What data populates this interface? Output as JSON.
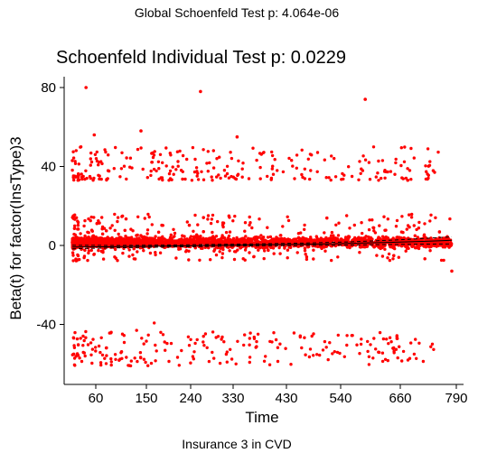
{
  "chart_data": {
    "type": "scatter",
    "caption_top": "Global Schoenfeld Test p: 4.064e-06",
    "title": "Schoenfeld Individual Test p: 0.0229",
    "caption_bottom": "Insurance 3 in CVD",
    "xlabel": "Time",
    "ylabel": "Beta(t) for factor(InsType)3",
    "x_ticks": [
      "60",
      "150",
      "240",
      "330",
      "430",
      "540",
      "660",
      "790"
    ],
    "y_ticks": [
      "80",
      "40",
      "0",
      "-40"
    ],
    "ylim": [
      -63,
      84
    ],
    "grid": false,
    "series": [
      {
        "color": "#ff0000",
        "marker": "point",
        "clusters": [
          {
            "band": "center",
            "y_range": [
              -8,
              16
            ],
            "x_range": [
              0,
              829
            ],
            "approx_points": 3000
          },
          {
            "band": "upper",
            "y_range": [
              33,
              50
            ],
            "x_range": [
              0,
              800
            ],
            "approx_points": 260
          },
          {
            "band": "lower",
            "y_range": [
              -61,
              -30
            ],
            "x_range": [
              0,
              800
            ],
            "approx_points": 230
          }
        ],
        "outliers": [
          {
            "x": 30,
            "y": 80
          },
          {
            "x": 280,
            "y": 78
          },
          {
            "x": 640,
            "y": 74
          },
          {
            "x": 48,
            "y": 56
          },
          {
            "x": 150,
            "y": 58
          },
          {
            "x": 360,
            "y": 55
          },
          {
            "x": 829,
            "y": -13
          }
        ]
      },
      {
        "color": "#000000",
        "style": "fit-with-dashed-band",
        "x": [
          0,
          100,
          200,
          300,
          400,
          500,
          600,
          700,
          780,
          829
        ],
        "y": [
          -0.8,
          -0.6,
          -0.3,
          0.0,
          0.3,
          0.6,
          1.0,
          1.6,
          2.2,
          2.6
        ],
        "band_halfwidth": [
          0.9,
          0.6,
          0.5,
          0.5,
          0.5,
          0.6,
          0.8,
          1.1,
          1.5,
          1.8
        ]
      }
    ]
  }
}
